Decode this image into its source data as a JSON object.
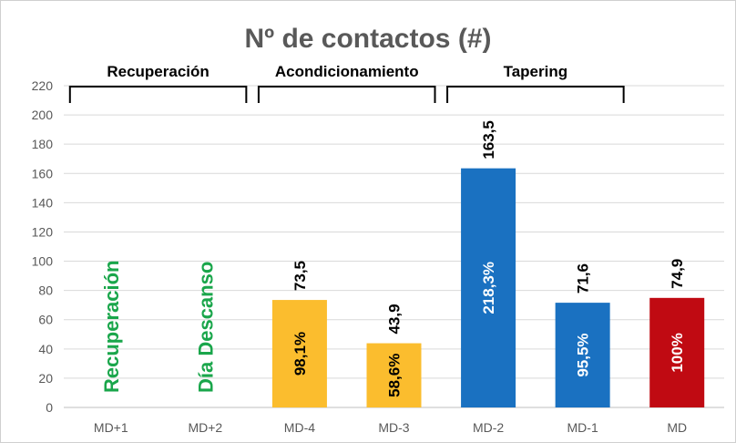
{
  "chart_data": {
    "type": "bar",
    "title": "Nº de contactos (#)",
    "categories": [
      "MD+1",
      "MD+2",
      "MD-4",
      "MD-3",
      "MD-2",
      "MD-1",
      "MD"
    ],
    "values": [
      null,
      null,
      73.5,
      43.9,
      163.5,
      71.6,
      74.9
    ],
    "value_labels": [
      "",
      "",
      "73,5",
      "43,9",
      "163,5",
      "71,6",
      "74,9"
    ],
    "percent_labels": [
      "",
      "",
      "98,1%",
      "58,6%",
      "218,3%",
      "95,5%",
      "100%"
    ],
    "bar_colors": [
      "",
      "",
      "#fbbd2e",
      "#fbbd2e",
      "#1a71c1",
      "#1a71c1",
      "#c00a12"
    ],
    "percent_colors": [
      "",
      "",
      "#000000",
      "#000000",
      "#ffffff",
      "#ffffff",
      "#ffffff"
    ],
    "bar_notes": [
      "Recuperación",
      "Día Descanso",
      "",
      "",
      "",
      "",
      ""
    ],
    "note_color": "#1aa64b",
    "ylim": [
      0,
      220
    ],
    "yticks": [
      0,
      20,
      40,
      60,
      80,
      100,
      120,
      140,
      160,
      180,
      200,
      220
    ],
    "grid": true,
    "groups": [
      {
        "label": "Recuperación",
        "from": 0,
        "to": 1
      },
      {
        "label": "Acondicionamiento",
        "from": 2,
        "to": 3
      },
      {
        "label": "Tapering",
        "from": 4,
        "to": 5
      }
    ]
  }
}
